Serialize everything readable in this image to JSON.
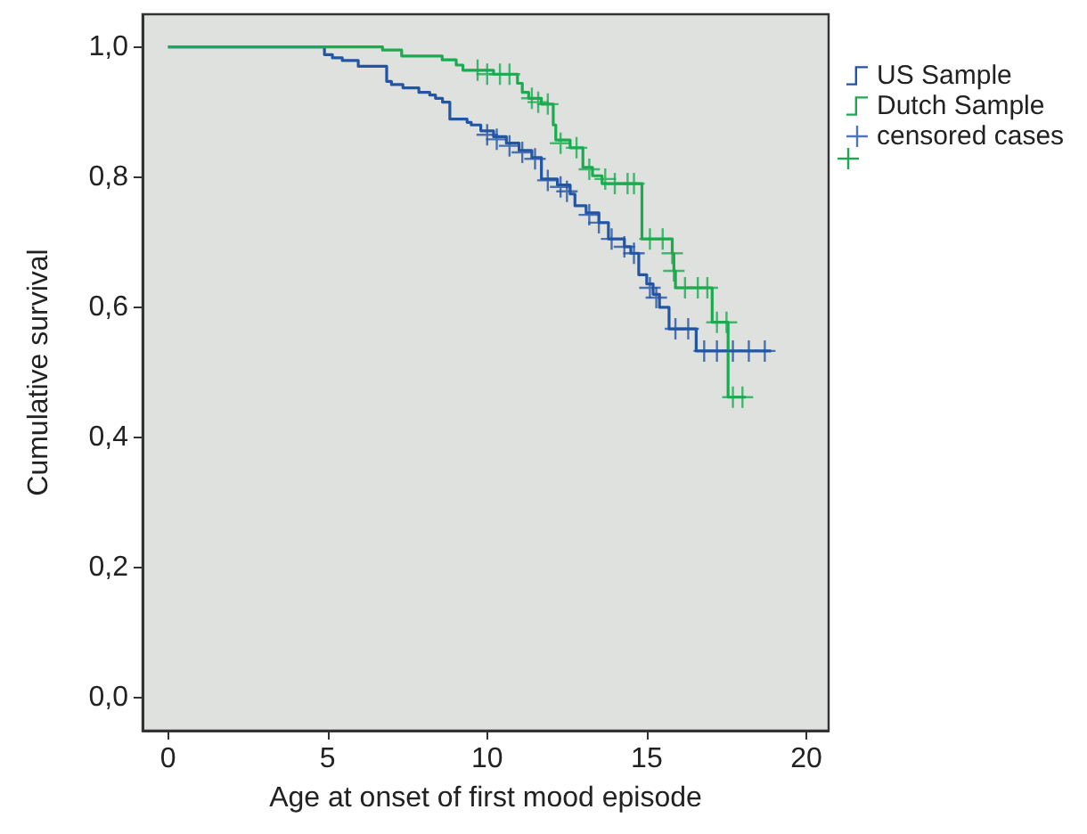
{
  "chart_data": {
    "type": "step",
    "xlabel": "Age at onset of first mood episode",
    "ylabel": "Cumulative survival",
    "xlim": [
      -0.8,
      20.7
    ],
    "xticks": [
      0,
      5,
      10,
      15,
      20
    ],
    "ylim": [
      -0.05,
      1.05
    ],
    "yticks": [
      {
        "value": 0,
        "label": "0,0"
      },
      {
        "value": 0.2,
        "label": "0,2"
      },
      {
        "value": 0.4,
        "label": "0,4"
      },
      {
        "value": 0.6,
        "label": "0,6"
      },
      {
        "value": 0.8,
        "label": "0,8"
      },
      {
        "value": 1,
        "label": "1,0"
      }
    ],
    "grid": false,
    "legend": "top right",
    "line_style": "solid",
    "series": [
      {
        "name": "US Sample",
        "color": "#2355a5",
        "marker": "none",
        "x": [
          0,
          4.9,
          5.15,
          5.46,
          5.96,
          6.85,
          7.0,
          7.36,
          7.86,
          8.2,
          8.38,
          8.6,
          8.83,
          9.37,
          9.5,
          9.8,
          10.2,
          10.6,
          11.0,
          11.4,
          11.7,
          12.2,
          12.6,
          12.75,
          13.1,
          13.5,
          13.8,
          14.3,
          14.5,
          14.75,
          15.0,
          15.2,
          15.4,
          15.7,
          16.55,
          18.9
        ],
        "values": [
          1,
          0.988,
          0.983,
          0.979,
          0.97,
          0.947,
          0.942,
          0.937,
          0.93,
          0.926,
          0.921,
          0.915,
          0.889,
          0.884,
          0.88,
          0.871,
          0.862,
          0.852,
          0.841,
          0.83,
          0.797,
          0.788,
          0.774,
          0.756,
          0.745,
          0.73,
          0.705,
          0.693,
          0.683,
          0.65,
          0.636,
          0.62,
          0.6,
          0.567,
          0.533,
          0.533
        ]
      },
      {
        "name": "Dutch Sample",
        "color": "#1aab4f",
        "marker": "none",
        "x": [
          0,
          6.72,
          7.32,
          8.59,
          9.03,
          9.24,
          10.2,
          10.95,
          11.1,
          11.3,
          11.7,
          12.07,
          12.15,
          12.6,
          13.0,
          13.3,
          13.6,
          14.85,
          15.8,
          15.85,
          15.9,
          17.05,
          17.55,
          18.1
        ],
        "values": [
          1,
          0.995,
          0.986,
          0.98,
          0.972,
          0.964,
          0.958,
          0.944,
          0.93,
          0.921,
          0.912,
          0.88,
          0.857,
          0.845,
          0.815,
          0.802,
          0.79,
          0.705,
          0.683,
          0.656,
          0.63,
          0.577,
          0.462,
          0.462
        ]
      },
      {
        "name": "censored cases",
        "type": "scatter",
        "color": "#2355a5",
        "marker": "cross",
        "x": [
          10.0,
          10.3,
          10.7,
          11.1,
          11.5,
          11.9,
          12.3,
          12.5,
          13.2,
          13.5,
          13.9,
          14.3,
          14.6,
          15.1,
          15.3,
          15.9,
          16.3,
          16.8,
          17.2,
          17.7,
          18.2,
          18.7
        ],
        "values": [
          0.865,
          0.858,
          0.848,
          0.838,
          0.828,
          0.795,
          0.785,
          0.778,
          0.742,
          0.73,
          0.705,
          0.693,
          0.683,
          0.63,
          0.615,
          0.567,
          0.567,
          0.533,
          0.533,
          0.533,
          0.533,
          0.533
        ]
      },
      {
        "type": "scatter",
        "color": "#1aab4f",
        "marker": "cross",
        "x": [
          9.7,
          10.0,
          10.4,
          10.7,
          11.4,
          11.6,
          11.9,
          12.3,
          12.8,
          13.2,
          13.7,
          14.0,
          14.4,
          14.6,
          15.1,
          15.5,
          15.8,
          15.85,
          16.2,
          16.6,
          16.9,
          17.2,
          17.5,
          17.7,
          18.0
        ],
        "values": [
          0.964,
          0.958,
          0.958,
          0.958,
          0.921,
          0.915,
          0.912,
          0.852,
          0.845,
          0.812,
          0.797,
          0.79,
          0.79,
          0.79,
          0.705,
          0.705,
          0.683,
          0.656,
          0.63,
          0.63,
          0.63,
          0.577,
          0.577,
          0.462,
          0.462
        ]
      }
    ]
  }
}
